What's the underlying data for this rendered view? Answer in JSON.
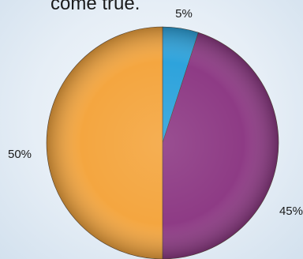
{
  "chart_data": {
    "type": "pie",
    "title": "come true.",
    "slices": [
      {
        "label": "5%",
        "value": 5,
        "color": "#2ea3dc"
      },
      {
        "label": "45%",
        "value": 45,
        "color": "#8e3b85"
      },
      {
        "label": "50%",
        "value": 50,
        "color": "#f4a640"
      }
    ],
    "start_angle_deg": 0,
    "direction": "clockwise",
    "legend": "none"
  }
}
